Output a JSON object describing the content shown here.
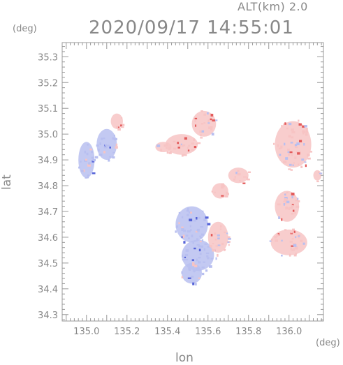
{
  "header": {
    "altitude_label": "ALT(km) 2.0",
    "timestamp": "2020/09/17 14:55:01"
  },
  "axes": {
    "x_title": "lon",
    "y_title": "lat",
    "x_unit": "(deg)",
    "y_unit": "(deg)",
    "x_range": [
      134.88,
      136.17
    ],
    "y_range": [
      34.275,
      35.355
    ],
    "x_ticks": [
      "135.0",
      "135.2",
      "135.4",
      "135.6",
      "135.8",
      "136.0"
    ],
    "x_tick_values": [
      135.0,
      135.2,
      135.4,
      135.6,
      135.8,
      136.0
    ],
    "y_ticks": [
      "35.3",
      "35.2",
      "35.1",
      "35.0",
      "34.9",
      "34.8",
      "34.7",
      "34.6",
      "34.5",
      "34.4",
      "34.3"
    ],
    "y_tick_values": [
      35.3,
      35.2,
      35.1,
      35.0,
      34.9,
      34.8,
      34.7,
      34.6,
      34.5,
      34.4,
      34.3
    ]
  },
  "colors": {
    "axis": "#999999",
    "approaching": "#b8bff0",
    "receding": "#f7c4c4",
    "strong_receding": "#e35a5a",
    "strong_approaching": "#5563d8"
  },
  "echo_regions": [
    {
      "lon": 135.0,
      "lat": 34.9,
      "rlon": 0.04,
      "rlat": 0.07,
      "sign": "approaching"
    },
    {
      "lon": 135.1,
      "lat": 34.96,
      "rlon": 0.05,
      "rlat": 0.06,
      "sign": "approaching"
    },
    {
      "lon": 135.15,
      "lat": 35.05,
      "rlon": 0.03,
      "rlat": 0.03,
      "sign": "receding"
    },
    {
      "lon": 135.58,
      "lat": 35.04,
      "rlon": 0.06,
      "rlat": 0.05,
      "sign": "receding"
    },
    {
      "lon": 135.47,
      "lat": 34.96,
      "rlon": 0.08,
      "rlat": 0.04,
      "sign": "receding"
    },
    {
      "lon": 135.38,
      "lat": 34.95,
      "rlon": 0.04,
      "rlat": 0.02,
      "sign": "receding"
    },
    {
      "lon": 136.02,
      "lat": 34.96,
      "rlon": 0.09,
      "rlat": 0.09,
      "sign": "receding"
    },
    {
      "lon": 135.99,
      "lat": 34.72,
      "rlon": 0.06,
      "rlat": 0.06,
      "sign": "receding"
    },
    {
      "lon": 136.0,
      "lat": 34.58,
      "rlon": 0.09,
      "rlat": 0.05,
      "sign": "receding"
    },
    {
      "lon": 135.52,
      "lat": 34.65,
      "rlon": 0.08,
      "rlat": 0.07,
      "sign": "approaching"
    },
    {
      "lon": 135.55,
      "lat": 34.53,
      "rlon": 0.08,
      "rlat": 0.06,
      "sign": "approaching"
    },
    {
      "lon": 135.52,
      "lat": 34.46,
      "rlon": 0.05,
      "rlat": 0.04,
      "sign": "approaching"
    },
    {
      "lon": 135.75,
      "lat": 34.84,
      "rlon": 0.05,
      "rlat": 0.03,
      "sign": "receding"
    },
    {
      "lon": 135.66,
      "lat": 34.78,
      "rlon": 0.04,
      "rlat": 0.03,
      "sign": "receding"
    },
    {
      "lon": 135.65,
      "lat": 34.6,
      "rlon": 0.05,
      "rlat": 0.06,
      "sign": "receding"
    },
    {
      "lon": 136.14,
      "lat": 34.84,
      "rlon": 0.02,
      "rlat": 0.02,
      "sign": "receding"
    }
  ]
}
